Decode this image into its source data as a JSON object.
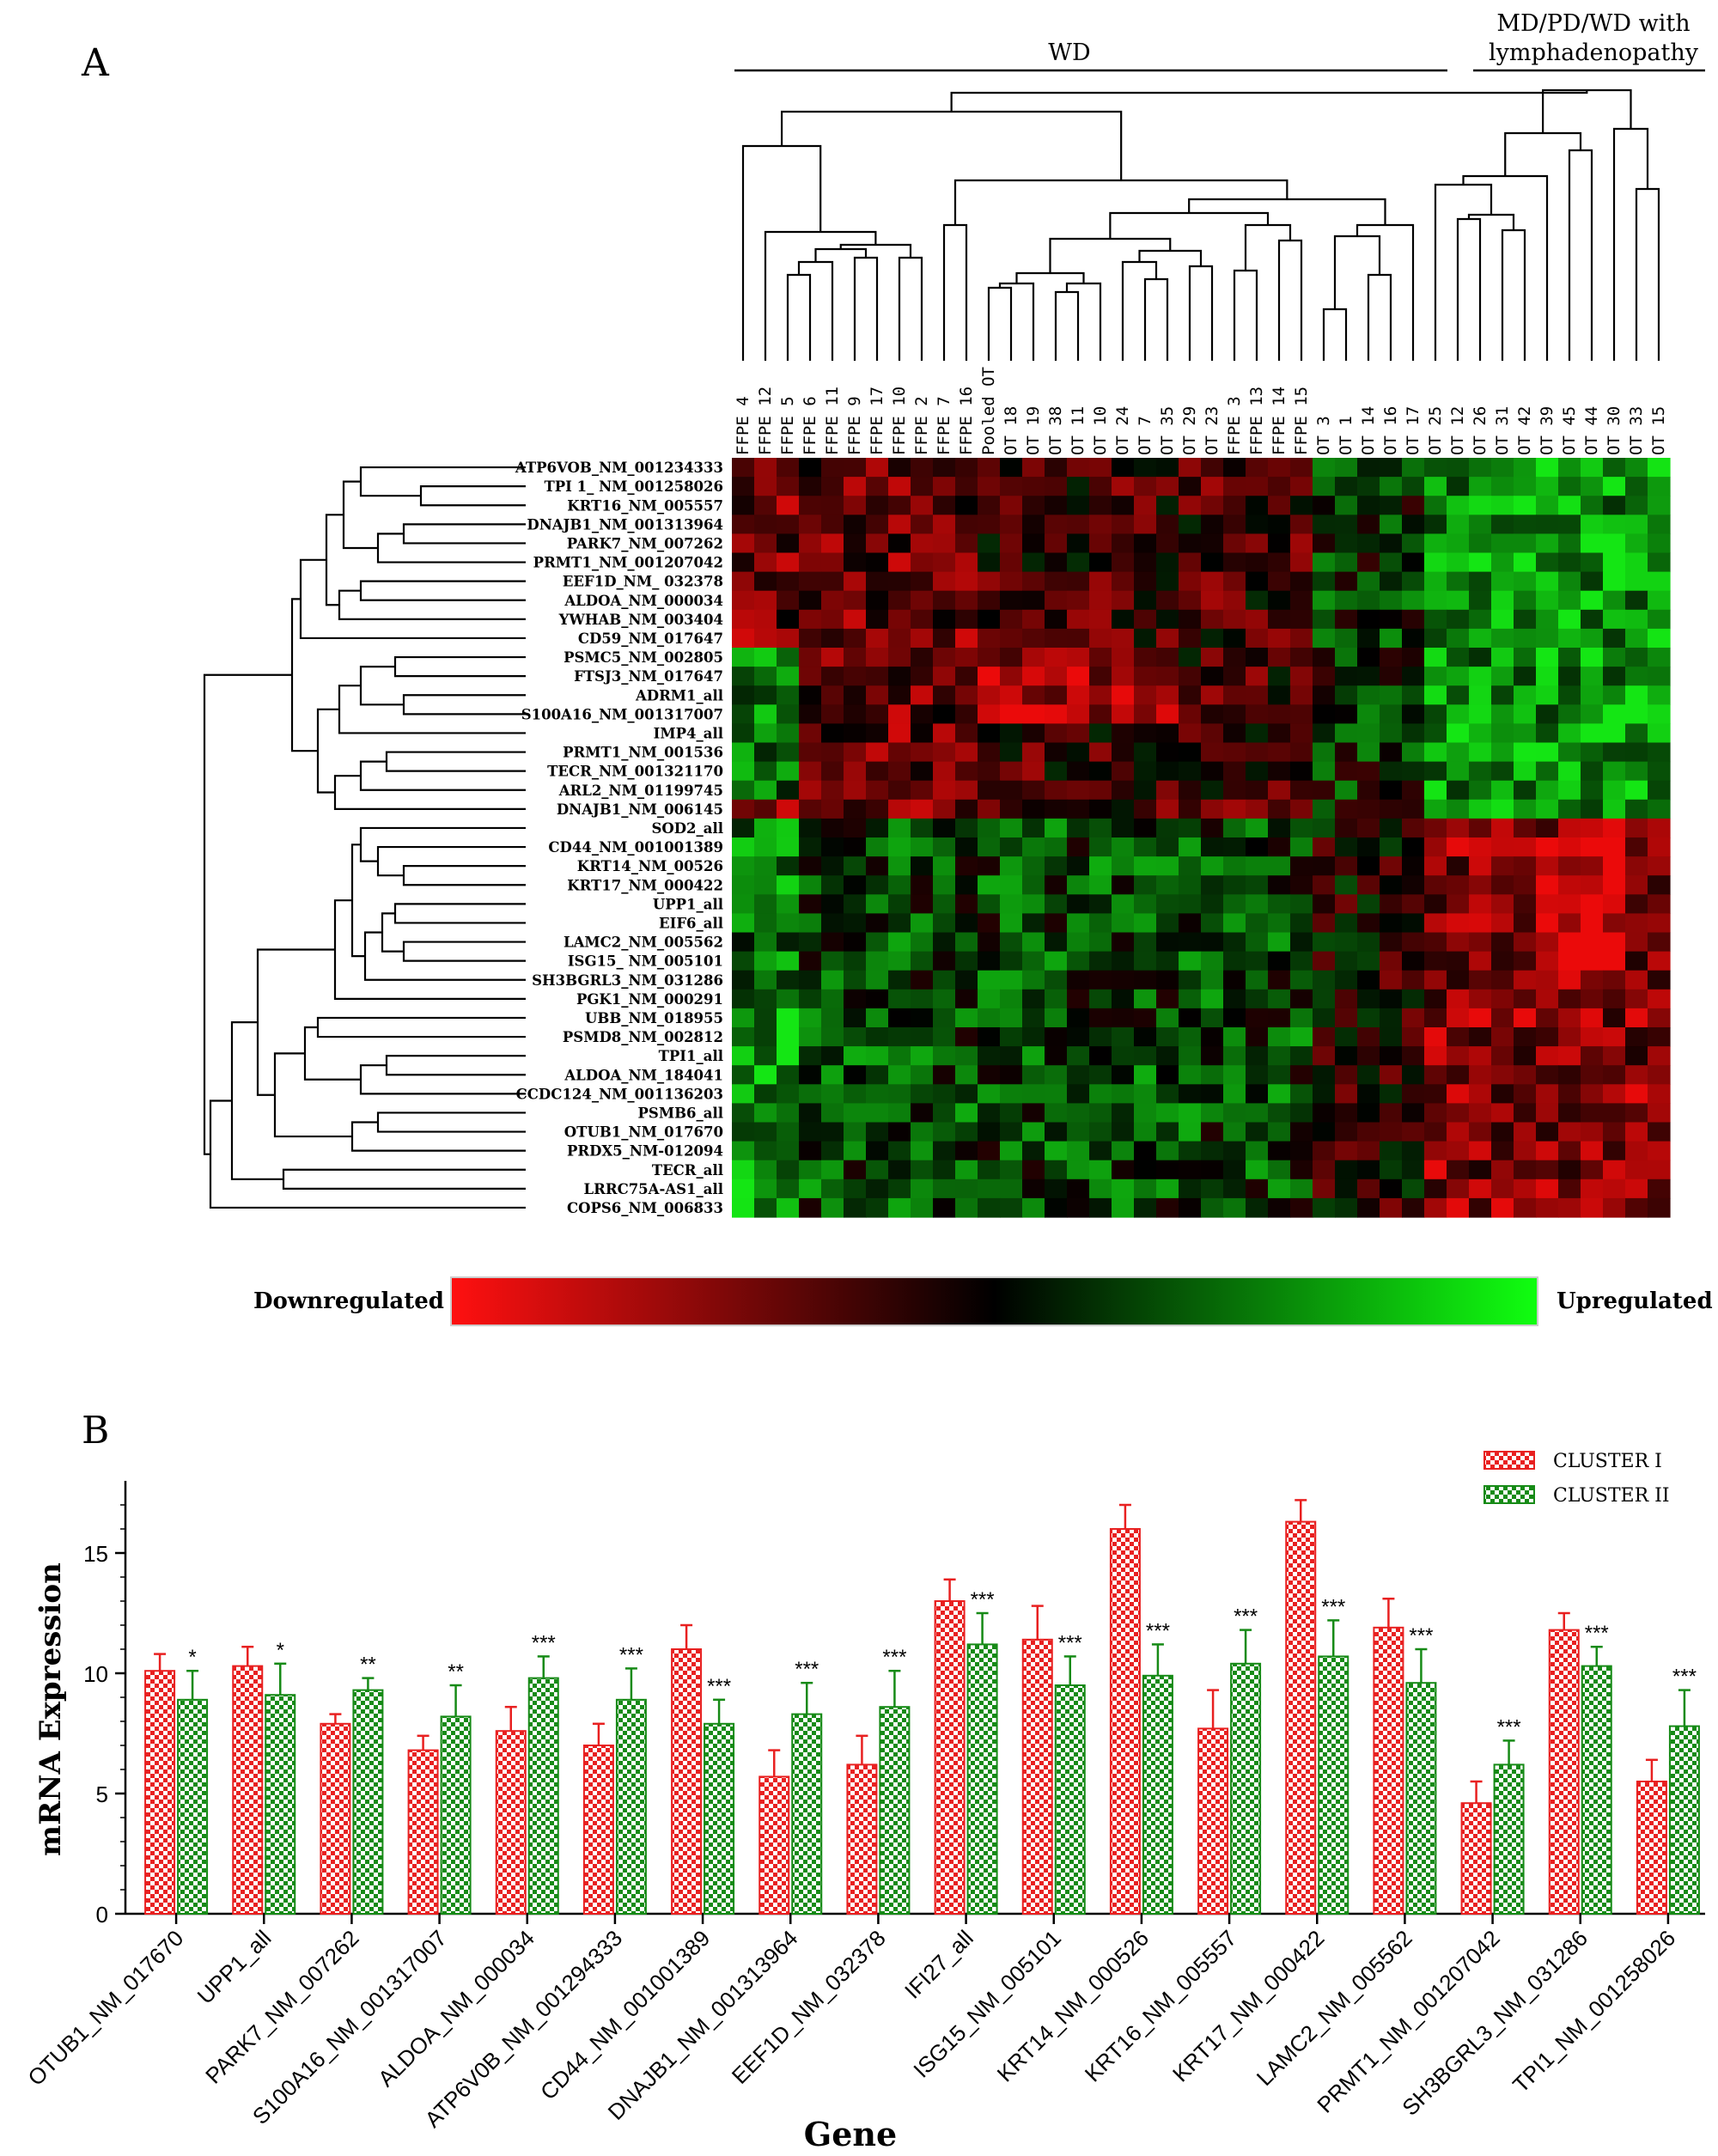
{
  "panel_a": {
    "label": "A",
    "group_wd": "WD",
    "group_md_line1": "MD/PD/WD with",
    "group_md_line2": "lymphadenopathy",
    "legend_down": "Downregulated",
    "legend_up": "Upregulated",
    "colors": {
      "down": "#ff1010",
      "mid": "#000000",
      "up": "#10ff10"
    }
  },
  "panel_b": {
    "label": "B",
    "ylabel": "mRNA Expression",
    "xlabel": "Gene"
  },
  "chart_data": [
    {
      "type": "heatmap",
      "columns": [
        "FFPE 4",
        "FFPE 12",
        "FFPE 5",
        "FFPE 6",
        "FFPE 11",
        "FFPE 9",
        "FFPE 17",
        "FFPE 10",
        "FFPE 2",
        "FFPE 7",
        "FFPE 16",
        "Pooled OT",
        "OT 18",
        "OT 19",
        "OT 38",
        "OT 11",
        "OT 10",
        "OT 24",
        "OT 7",
        "OT 35",
        "OT 29",
        "OT 23",
        "FFPE 3",
        "FFPE 13",
        "FFPE 14",
        "FFPE 15",
        "OT 3",
        "OT 1",
        "OT 14",
        "OT 16",
        "OT 17",
        "OT 25",
        "OT 12",
        "OT 26",
        "OT 31",
        "OT 42",
        "OT 39",
        "OT 45",
        "OT 44",
        "OT 30",
        "OT 33",
        "OT 15"
      ],
      "rows": [
        "ATP6VOB_NM_001234333",
        "TPI 1_ NM_001258026",
        "KRT16_NM_005557",
        "DNAJB1_NM_001313964",
        "PARK7_NM_007262",
        "PRMT1_NM_001207042",
        "EEF1D_NM_ 032378",
        "ALDOA_NM_000034",
        "YWHAB_NM_003404",
        "CD59_NM_017647",
        "PSMC5_NM_002805",
        "FTSJ3_NM_017647",
        "ADRM1_all",
        "S100A16_NM_001317007",
        "IMP4_all",
        "PRMT1_NM_001536",
        "TECR_NM_001321170",
        "ARL2_NM_01199745",
        "DNAJB1_NM_006145",
        "SOD2_all",
        "CD44_NM_001001389",
        "KRT14_NM_00526",
        "KRT17_NM_000422",
        "UPP1_all",
        "EIF6_all",
        "LAMC2_NM_005562",
        "ISG15_ NM_005101",
        "SH3BGRL3_NM_031286",
        "PGK1_NM_000291",
        "UBB_NM_018955",
        "PSMD8_NM_002812",
        "TPI1_all",
        "ALDOA_NM_184041",
        "CCDC124_NM_001136203",
        "PSMB6_all",
        "OTUB1_NM_017670",
        "PRDX5_NM-012094",
        "TECR_all",
        "LRRC75A-AS1_all",
        "COPS6_NM_006833"
      ],
      "scale": [
        "Downregulated",
        "Upregulated"
      ]
    },
    {
      "type": "bar",
      "categories": [
        "OTUB1_NM_017670",
        "UPP1_all",
        "PARK7_NM_007262",
        "S100A16_NM_001317007",
        "ALDOA_NM_000034",
        "ATP6V0B_NM_001294333",
        "CD44_NM_001001389",
        "DNAJB1_NM_001313964",
        "EEF1D_NM_032378",
        "IFI27_all",
        "ISG15_NM_005101",
        "KRT14_NM_000526",
        "KRT16_NM_005557",
        "KRT17_NM_000422",
        "LAMC2_NM_005562",
        "PRMT1_NM_001207042",
        "SH3BGRL3_NM_031286",
        "TPI1_NM_001258026"
      ],
      "series": [
        {
          "name": "CLUSTER I",
          "values": [
            10.1,
            10.3,
            7.9,
            6.8,
            7.6,
            7.0,
            11.0,
            5.7,
            6.2,
            13.0,
            11.4,
            16.0,
            7.7,
            16.3,
            11.9,
            4.6,
            11.8,
            5.5
          ],
          "errors": [
            0.7,
            0.8,
            0.4,
            0.6,
            1.0,
            0.9,
            1.0,
            1.1,
            1.2,
            0.9,
            1.4,
            1.0,
            1.6,
            0.9,
            1.2,
            0.9,
            0.7,
            0.9
          ],
          "color": "#e82020"
        },
        {
          "name": "CLUSTER II",
          "values": [
            8.9,
            9.1,
            9.3,
            8.2,
            9.8,
            8.9,
            7.9,
            8.3,
            8.6,
            11.2,
            9.5,
            9.9,
            10.4,
            10.7,
            9.6,
            6.2,
            10.3,
            7.8
          ],
          "errors": [
            1.2,
            1.3,
            0.5,
            1.3,
            0.9,
            1.3,
            1.0,
            1.3,
            1.5,
            1.3,
            1.2,
            1.3,
            1.4,
            1.5,
            1.4,
            1.0,
            0.8,
            1.5
          ],
          "color": "#168a16"
        }
      ],
      "significance": [
        "*",
        "*",
        "**",
        "**",
        "***",
        "***",
        "***",
        "***",
        "***",
        "***",
        "***",
        "***",
        "***",
        "***",
        "***",
        "***",
        "***",
        "***"
      ],
      "xlabel": "Gene",
      "ylabel": "mRNA Expression",
      "ylim": [
        0,
        18
      ],
      "yticks": [
        0,
        5,
        10,
        15
      ],
      "legend_position": "top-right"
    }
  ]
}
